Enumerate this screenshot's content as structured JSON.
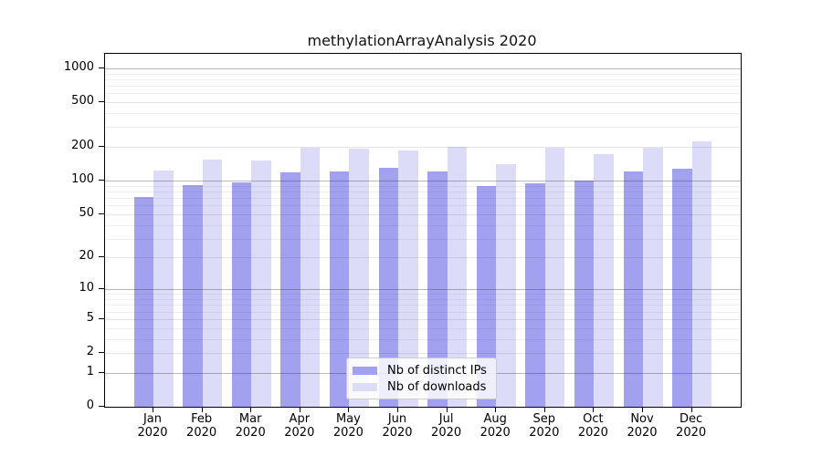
{
  "figure_title": "methylationArrayAnalysis 2020",
  "chart_data": {
    "type": "bar",
    "title": "methylationArrayAnalysis 2020",
    "categories": [
      "Jan 2020",
      "Feb 2020",
      "Mar 2020",
      "Apr 2020",
      "May 2020",
      "Jun 2020",
      "Jul 2020",
      "Aug 2020",
      "Sep 2020",
      "Oct 2020",
      "Nov 2020",
      "Dec 2020"
    ],
    "series": [
      {
        "name": "Nb of distinct IPs",
        "color": "#a1a1f0",
        "values": [
          71,
          92,
          97,
          119,
          121,
          130,
          122,
          89,
          94,
          101,
          120,
          128
        ]
      },
      {
        "name": "Nb of downloads",
        "color": "#dcdcf8",
        "values": [
          123,
          154,
          151,
          196,
          193,
          187,
          200,
          140,
          196,
          172,
          195,
          226
        ]
      }
    ],
    "xlabel": "",
    "ylabel": "",
    "yscale": "log10(1+x)",
    "yticks": [
      0,
      1,
      2,
      5,
      10,
      20,
      50,
      100,
      200,
      500,
      1000
    ],
    "ytick_sub": [
      2,
      5,
      20,
      50,
      200,
      500
    ],
    "ytick_major": [
      1,
      10,
      100,
      1000
    ],
    "yticks_minor": [
      3,
      4,
      6,
      7,
      8,
      9,
      30,
      40,
      60,
      70,
      80,
      90,
      300,
      400,
      600,
      700,
      800,
      900
    ],
    "ylim": [
      0,
      1344
    ],
    "grid": true,
    "legend_position": "inside-bottom-center",
    "axis_color": "#000000",
    "background_color": "#ffffff"
  }
}
